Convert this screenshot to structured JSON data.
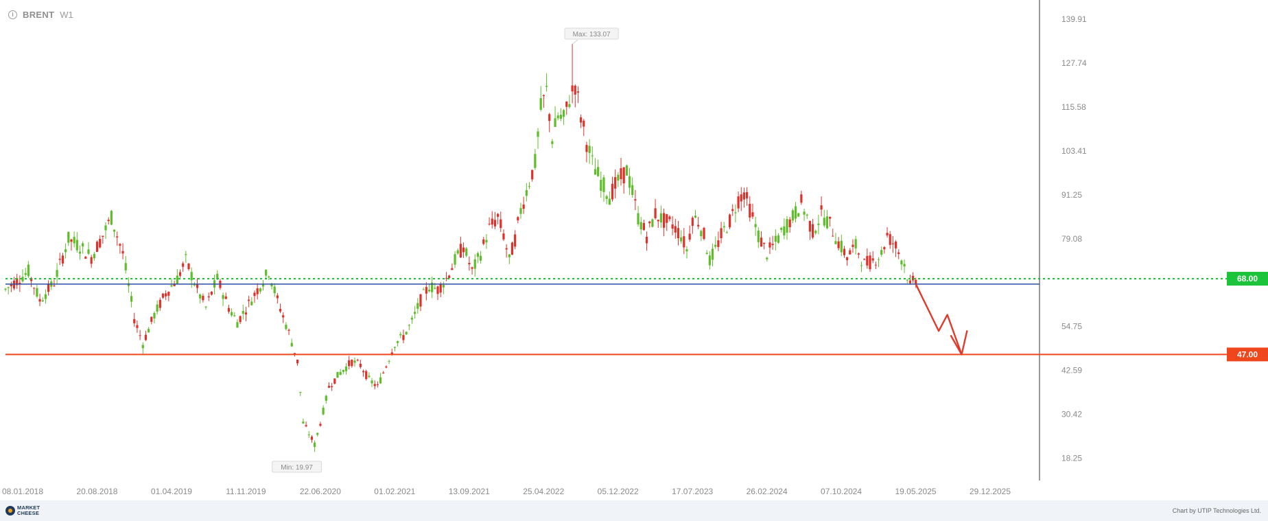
{
  "header": {
    "symbol": "BRENT",
    "timeframe": "W1",
    "info_icon": "info-icon"
  },
  "footer": {
    "logo_line1": "MARKET",
    "logo_line2": "CHEESE",
    "credit": "Chart by UTIP Technologies Ltd."
  },
  "chart_data": {
    "type": "candlestick",
    "ylim": [
      13.0,
      143.0
    ],
    "y_ticks": [
      18.25,
      30.42,
      42.59,
      54.75,
      79.08,
      91.25,
      103.41,
      115.58,
      127.74,
      139.91
    ],
    "y_tick_labels": [
      "18.25",
      "30.42",
      "42.59",
      "54.75",
      "79.08",
      "91.25",
      "103.41",
      "115.58",
      "127.74",
      "139.91"
    ],
    "x_tick_labels": [
      "08.01.2018",
      "20.08.2018",
      "01.04.2019",
      "11.11.2019",
      "22.06.2020",
      "01.02.2021",
      "13.09.2021",
      "25.04.2022",
      "05.12.2022",
      "17.07.2023",
      "26.02.2024",
      "07.10.2024",
      "19.05.2025",
      "29.12.2025"
    ],
    "max_label": "Max: 133.07",
    "min_label": "Min: 19.97",
    "max_value": 133.07,
    "min_value": 19.97,
    "levels": [
      {
        "name": "resistance",
        "value": 68.0,
        "label": "68.00",
        "color": "#1cc43b",
        "style": "dotted"
      },
      {
        "name": "blue-line",
        "value": 66.5,
        "color": "#2b4ea2",
        "style": "solid"
      },
      {
        "name": "target",
        "value": 47.0,
        "label": "47.00",
        "color": "#f0461e",
        "style": "solid"
      }
    ],
    "price_path": [
      [
        0,
        65
      ],
      [
        8,
        70
      ],
      [
        12,
        62
      ],
      [
        17,
        67
      ],
      [
        22,
        79
      ],
      [
        26,
        77
      ],
      [
        30,
        74
      ],
      [
        34,
        80
      ],
      [
        37,
        85
      ],
      [
        41,
        75
      ],
      [
        45,
        57
      ],
      [
        48,
        50
      ],
      [
        52,
        58
      ],
      [
        56,
        64
      ],
      [
        60,
        68
      ],
      [
        63,
        73
      ],
      [
        67,
        65
      ],
      [
        70,
        60
      ],
      [
        74,
        68
      ],
      [
        78,
        60
      ],
      [
        81,
        56
      ],
      [
        85,
        61
      ],
      [
        88,
        65
      ],
      [
        92,
        70
      ],
      [
        95,
        62
      ],
      [
        99,
        53
      ],
      [
        102,
        45
      ],
      [
        104,
        28
      ],
      [
        106,
        25
      ],
      [
        108,
        22
      ],
      [
        110,
        28
      ],
      [
        113,
        38
      ],
      [
        117,
        42
      ],
      [
        121,
        45
      ],
      [
        124,
        44
      ],
      [
        127,
        40
      ],
      [
        130,
        38
      ],
      [
        133,
        44
      ],
      [
        136,
        50
      ],
      [
        139,
        52
      ],
      [
        142,
        56
      ],
      [
        145,
        62
      ],
      [
        148,
        66
      ],
      [
        151,
        65
      ],
      [
        154,
        68
      ],
      [
        157,
        73
      ],
      [
        160,
        77
      ],
      [
        163,
        70
      ],
      [
        166,
        75
      ],
      [
        169,
        82
      ],
      [
        172,
        85
      ],
      [
        174,
        80
      ],
      [
        176,
        73
      ],
      [
        178,
        79
      ],
      [
        180,
        87
      ],
      [
        183,
        95
      ],
      [
        185,
        100
      ],
      [
        187,
        115
      ],
      [
        189,
        120
      ],
      [
        191,
        107
      ],
      [
        193,
        113
      ],
      [
        195,
        112
      ],
      [
        197,
        118
      ],
      [
        199,
        122
      ],
      [
        201,
        113
      ],
      [
        203,
        106
      ],
      [
        205,
        100
      ],
      [
        208,
        95
      ],
      [
        211,
        91
      ],
      [
        214,
        95
      ],
      [
        217,
        98
      ],
      [
        219,
        92
      ],
      [
        221,
        85
      ],
      [
        224,
        80
      ],
      [
        227,
        86
      ],
      [
        230,
        84
      ],
      [
        233,
        83
      ],
      [
        236,
        80
      ],
      [
        238,
        76
      ],
      [
        240,
        85
      ],
      [
        242,
        84
      ],
      [
        244,
        80
      ],
      [
        246,
        73
      ],
      [
        248,
        76
      ],
      [
        250,
        80
      ],
      [
        253,
        84
      ],
      [
        256,
        90
      ],
      [
        258,
        92
      ],
      [
        261,
        85
      ],
      [
        263,
        80
      ],
      [
        266,
        75
      ],
      [
        269,
        78
      ],
      [
        272,
        82
      ],
      [
        275,
        85
      ],
      [
        278,
        89
      ],
      [
        280,
        85
      ],
      [
        282,
        81
      ],
      [
        285,
        86
      ],
      [
        288,
        83
      ],
      [
        291,
        78
      ],
      [
        294,
        74
      ],
      [
        297,
        77
      ],
      [
        300,
        72
      ],
      [
        303,
        73
      ],
      [
        306,
        75
      ],
      [
        308,
        80
      ],
      [
        311,
        77
      ],
      [
        314,
        72
      ],
      [
        316,
        66
      ],
      [
        318,
        68
      ]
    ],
    "projection": [
      {
        "week": 318,
        "value": 66.5
      },
      {
        "week": 326,
        "value": 53.5
      },
      {
        "week": 329,
        "value": 58.0
      },
      {
        "week": 334,
        "value": 47.0
      }
    ],
    "colors": {
      "up": "#5ebd2a",
      "down": "#e0302a",
      "arrow": "#e03a2a",
      "axis_text": "#8a8a8a"
    }
  }
}
